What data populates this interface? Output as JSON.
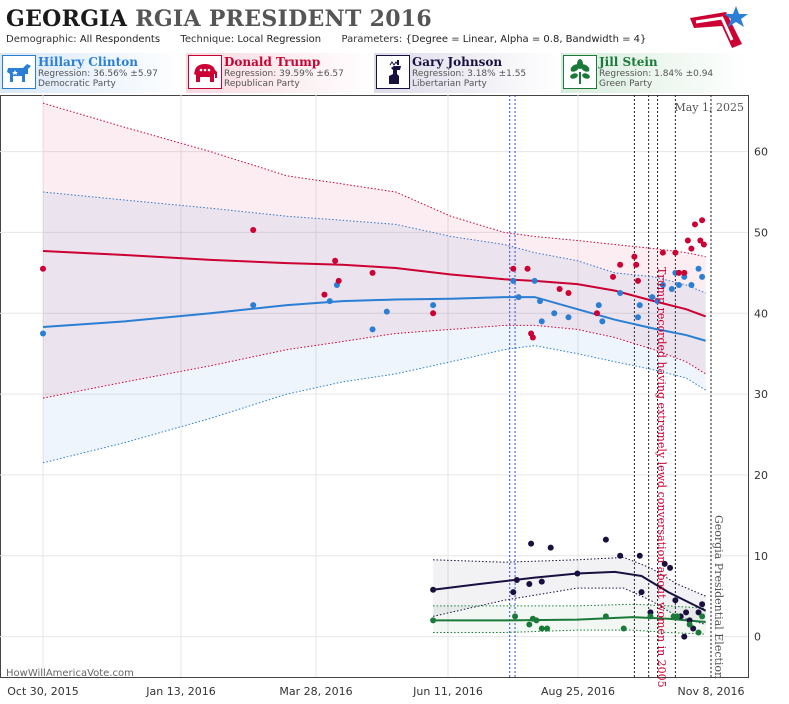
{
  "header": {
    "state": "GEORGIA",
    "subtitle": "RGIA PRESIDENT 2016",
    "demographic_label": "Demographic:",
    "demographic_value": "All Respondents",
    "technique_label": "Technique:",
    "technique_value": "Local Regression",
    "parameters_label": "Parameters:",
    "parameters_value": "{Degree = Linear, Alpha = 0.8, Bandwidth = 4}"
  },
  "candidates": [
    {
      "name": "Hillary Clinton",
      "regression": "Regression: 36.56% ±5.97",
      "party": "Democratic Party",
      "color": "#2a7fd4",
      "icon": "donkey-icon"
    },
    {
      "name": "Donald Trump",
      "regression": "Regression: 39.59% ±6.57",
      "party": "Republican Party",
      "color": "#cc0033",
      "icon": "elephant-icon"
    },
    {
      "name": "Gary Johnson",
      "regression": "Regression: 3.18% ±1.55",
      "party": "Libertarian Party",
      "color": "#1a1040",
      "icon": "liberty-icon"
    },
    {
      "name": "Jill Stein",
      "regression": "Regression: 1.84% ±0.94",
      "party": "Green Party",
      "color": "#1a7a3a",
      "icon": "leaf-icon"
    }
  ],
  "watermark": "HowWillAmericaVote.com",
  "chart_data": {
    "type": "scatter",
    "date_label": "May 1, 2025",
    "x_ticks": [
      "Oct 30, 2015",
      "Jan 13, 2016",
      "Mar 28, 2016",
      "Jun 11, 2016",
      "Aug 25, 2016",
      "Nov 8, 2016"
    ],
    "x_range": [
      "2015-10-30",
      "2016-11-08"
    ],
    "y_ticks": [
      0,
      10,
      20,
      30,
      40,
      50,
      60
    ],
    "ylim": [
      -5,
      67
    ],
    "grid": true,
    "annotations": [
      {
        "date": "2016-10-07",
        "text": "Trump recorded having extremely lewd conversation about women in 2005",
        "color": "#cc0033"
      },
      {
        "date": "2016-11-08",
        "text": "Georgia Presidential Election",
        "color": "#555555"
      }
    ],
    "event_lines_blue": [
      "2016-07-18",
      "2016-07-21"
    ],
    "event_lines_black": [
      "2016-09-26",
      "2016-10-04",
      "2016-10-09",
      "2016-10-19"
    ],
    "series": [
      {
        "name": "Hillary Clinton",
        "color": "#2a7fd4",
        "trend": [
          [
            "2015-10-30",
            38.3
          ],
          [
            "2015-12-15",
            39.0
          ],
          [
            "2016-02-01",
            40.0
          ],
          [
            "2016-03-15",
            41.0
          ],
          [
            "2016-04-15",
            41.5
          ],
          [
            "2016-05-15",
            41.7
          ],
          [
            "2016-06-15",
            41.8
          ],
          [
            "2016-07-15",
            42.0
          ],
          [
            "2016-08-01",
            42.0
          ],
          [
            "2016-08-25",
            40.5
          ],
          [
            "2016-09-15",
            39.2
          ],
          [
            "2016-10-07",
            38.1
          ],
          [
            "2016-10-25",
            37.3
          ],
          [
            "2016-11-05",
            36.6
          ]
        ],
        "upper": [
          [
            "2015-10-30",
            55
          ],
          [
            "2015-12-15",
            54
          ],
          [
            "2016-02-01",
            53
          ],
          [
            "2016-03-15",
            52
          ],
          [
            "2016-04-15",
            51.5
          ],
          [
            "2016-05-15",
            51
          ],
          [
            "2016-06-15",
            49.5
          ],
          [
            "2016-07-15",
            48.5
          ],
          [
            "2016-08-01",
            47.5
          ],
          [
            "2016-08-25",
            46.5
          ],
          [
            "2016-09-15",
            45.0
          ],
          [
            "2016-10-07",
            44.5
          ],
          [
            "2016-10-25",
            43.5
          ],
          [
            "2016-11-05",
            42.5
          ]
        ],
        "lower": [
          [
            "2015-10-30",
            21.5
          ],
          [
            "2015-12-15",
            24
          ],
          [
            "2016-02-01",
            27
          ],
          [
            "2016-03-15",
            30
          ],
          [
            "2016-04-15",
            31.5
          ],
          [
            "2016-05-15",
            32.5
          ],
          [
            "2016-06-15",
            34.0
          ],
          [
            "2016-07-15",
            35.5
          ],
          [
            "2016-08-01",
            36.0
          ],
          [
            "2016-08-25",
            35.0
          ],
          [
            "2016-09-15",
            34.0
          ],
          [
            "2016-10-07",
            33.0
          ],
          [
            "2016-10-25",
            32.0
          ],
          [
            "2016-11-05",
            30.5
          ]
        ],
        "points": [
          [
            "2015-10-30",
            37.5
          ],
          [
            "2016-02-25",
            41
          ],
          [
            "2016-04-08",
            41.5
          ],
          [
            "2016-04-12",
            43.5
          ],
          [
            "2016-05-02",
            38
          ],
          [
            "2016-05-10",
            40.2
          ],
          [
            "2016-06-05",
            41
          ],
          [
            "2016-07-20",
            44
          ],
          [
            "2016-07-23",
            42
          ],
          [
            "2016-08-01",
            44
          ],
          [
            "2016-08-04",
            41.5
          ],
          [
            "2016-08-05",
            39
          ],
          [
            "2016-08-12",
            40
          ],
          [
            "2016-08-20",
            39.5
          ],
          [
            "2016-09-06",
            41
          ],
          [
            "2016-09-08",
            39
          ],
          [
            "2016-09-18",
            42.5
          ],
          [
            "2016-09-28",
            39.5
          ],
          [
            "2016-09-29",
            41
          ],
          [
            "2016-10-06",
            42
          ],
          [
            "2016-10-09",
            41.5
          ],
          [
            "2016-10-12",
            43.5
          ],
          [
            "2016-10-17",
            43
          ],
          [
            "2016-10-19",
            45
          ],
          [
            "2016-10-21",
            43.5
          ],
          [
            "2016-10-24",
            44.5
          ],
          [
            "2016-10-28",
            43.5
          ],
          [
            "2016-11-01",
            45.5
          ],
          [
            "2016-11-03",
            44.5
          ]
        ]
      },
      {
        "name": "Donald Trump",
        "color": "#cc0033",
        "trend": [
          [
            "2015-10-30",
            47.7
          ],
          [
            "2015-12-15",
            47.2
          ],
          [
            "2016-02-01",
            46.6
          ],
          [
            "2016-03-15",
            46.2
          ],
          [
            "2016-04-15",
            46.0
          ],
          [
            "2016-05-15",
            45.6
          ],
          [
            "2016-06-15",
            44.8
          ],
          [
            "2016-07-15",
            44.2
          ],
          [
            "2016-08-01",
            44.0
          ],
          [
            "2016-08-25",
            43.6
          ],
          [
            "2016-09-15",
            42.8
          ],
          [
            "2016-10-07",
            41.5
          ],
          [
            "2016-10-25",
            40.5
          ],
          [
            "2016-11-05",
            39.6
          ]
        ],
        "upper": [
          [
            "2015-10-30",
            66
          ],
          [
            "2015-12-15",
            63
          ],
          [
            "2016-02-01",
            60
          ],
          [
            "2016-03-15",
            57
          ],
          [
            "2016-04-15",
            56
          ],
          [
            "2016-05-15",
            55
          ],
          [
            "2016-06-15",
            52
          ],
          [
            "2016-07-15",
            50
          ],
          [
            "2016-08-01",
            49.5
          ],
          [
            "2016-08-25",
            49
          ],
          [
            "2016-09-15",
            48.5
          ],
          [
            "2016-10-07",
            48
          ],
          [
            "2016-10-25",
            47.5
          ],
          [
            "2016-11-05",
            47
          ]
        ],
        "lower": [
          [
            "2015-10-30",
            29.5
          ],
          [
            "2015-12-15",
            31.5
          ],
          [
            "2016-02-01",
            33.5
          ],
          [
            "2016-03-15",
            35.5
          ],
          [
            "2016-04-15",
            36.5
          ],
          [
            "2016-05-15",
            37.5
          ],
          [
            "2016-06-15",
            38.0
          ],
          [
            "2016-07-15",
            38.5
          ],
          [
            "2016-08-01",
            38.5
          ],
          [
            "2016-08-25",
            38.0
          ],
          [
            "2016-09-15",
            37.0
          ],
          [
            "2016-10-07",
            35.5
          ],
          [
            "2016-10-25",
            34.0
          ],
          [
            "2016-11-05",
            32.5
          ]
        ],
        "points": [
          [
            "2015-10-30",
            45.5
          ],
          [
            "2016-02-25",
            50.3
          ],
          [
            "2016-04-05",
            42.3
          ],
          [
            "2016-04-11",
            46.5
          ],
          [
            "2016-04-13",
            44
          ],
          [
            "2016-05-02",
            45
          ],
          [
            "2016-06-05",
            40
          ],
          [
            "2016-07-20",
            45.5
          ],
          [
            "2016-07-28",
            45.5
          ],
          [
            "2016-07-30",
            37.5
          ],
          [
            "2016-07-31",
            37
          ],
          [
            "2016-08-15",
            43
          ],
          [
            "2016-08-20",
            42.5
          ],
          [
            "2016-09-05",
            40
          ],
          [
            "2016-09-14",
            44.5
          ],
          [
            "2016-09-18",
            46
          ],
          [
            "2016-09-26",
            47
          ],
          [
            "2016-09-27",
            46
          ],
          [
            "2016-09-28",
            44
          ],
          [
            "2016-10-12",
            47.5
          ],
          [
            "2016-10-19",
            47.5
          ],
          [
            "2016-10-21",
            45
          ],
          [
            "2016-10-24",
            45
          ],
          [
            "2016-10-26",
            49
          ],
          [
            "2016-10-28",
            48
          ],
          [
            "2016-10-30",
            51
          ],
          [
            "2016-11-02",
            49
          ],
          [
            "2016-11-03",
            51.5
          ],
          [
            "2016-11-04",
            48.5
          ]
        ]
      },
      {
        "name": "Gary Johnson",
        "color": "#1a1040",
        "trend": [
          [
            "2016-06-05",
            5.8
          ],
          [
            "2016-07-01",
            6.5
          ],
          [
            "2016-08-01",
            7.3
          ],
          [
            "2016-08-25",
            7.8
          ],
          [
            "2016-09-15",
            8.0
          ],
          [
            "2016-09-30",
            7.5
          ],
          [
            "2016-10-15",
            5.5
          ],
          [
            "2016-11-05",
            3.2
          ]
        ],
        "upper": [
          [
            "2016-06-05",
            9.5
          ],
          [
            "2016-07-15",
            9.2
          ],
          [
            "2016-08-25",
            9.5
          ],
          [
            "2016-09-20",
            9.8
          ],
          [
            "2016-10-05",
            8.5
          ],
          [
            "2016-10-20",
            6.5
          ],
          [
            "2016-11-05",
            5.0
          ]
        ],
        "lower": [
          [
            "2016-06-05",
            2.5
          ],
          [
            "2016-07-15",
            4.5
          ],
          [
            "2016-08-25",
            6.0
          ],
          [
            "2016-09-20",
            6.0
          ],
          [
            "2016-10-05",
            4.5
          ],
          [
            "2016-10-20",
            2.5
          ],
          [
            "2016-11-05",
            1.5
          ]
        ],
        "points": [
          [
            "2016-06-05",
            5.8
          ],
          [
            "2016-07-20",
            5.5
          ],
          [
            "2016-07-22",
            7
          ],
          [
            "2016-07-29",
            6.5
          ],
          [
            "2016-07-30",
            11.5
          ],
          [
            "2016-08-05",
            6.8
          ],
          [
            "2016-08-10",
            11
          ],
          [
            "2016-08-25",
            7.8
          ],
          [
            "2016-09-10",
            12
          ],
          [
            "2016-09-18",
            10
          ],
          [
            "2016-09-29",
            10
          ],
          [
            "2016-09-30",
            5.5
          ],
          [
            "2016-10-05",
            3
          ],
          [
            "2016-10-13",
            9
          ],
          [
            "2016-10-16",
            8.5
          ],
          [
            "2016-10-19",
            4.5
          ],
          [
            "2016-10-22",
            2.5
          ],
          [
            "2016-10-24",
            0
          ],
          [
            "2016-10-25",
            3
          ],
          [
            "2016-10-27",
            2
          ],
          [
            "2016-10-29",
            1
          ],
          [
            "2016-11-01",
            3
          ],
          [
            "2016-11-03",
            4
          ]
        ]
      },
      {
        "name": "Jill Stein",
        "color": "#1a7a3a",
        "trend": [
          [
            "2016-06-05",
            2.0
          ],
          [
            "2016-07-15",
            2.0
          ],
          [
            "2016-08-25",
            2.1
          ],
          [
            "2016-09-25",
            2.4
          ],
          [
            "2016-10-15",
            2.2
          ],
          [
            "2016-11-05",
            1.8
          ]
        ],
        "upper": [
          [
            "2016-06-05",
            3.8
          ],
          [
            "2016-07-15",
            3.8
          ],
          [
            "2016-08-25",
            3.8
          ],
          [
            "2016-09-25",
            4.0
          ],
          [
            "2016-10-15",
            3.8
          ],
          [
            "2016-11-05",
            3.5
          ]
        ],
        "lower": [
          [
            "2016-06-05",
            0.5
          ],
          [
            "2016-07-15",
            0.5
          ],
          [
            "2016-08-25",
            0.8
          ],
          [
            "2016-09-25",
            0.8
          ],
          [
            "2016-10-15",
            0.5
          ],
          [
            "2016-11-05",
            0.3
          ]
        ],
        "points": [
          [
            "2016-06-05",
            2
          ],
          [
            "2016-07-21",
            2.5
          ],
          [
            "2016-07-29",
            1.5
          ],
          [
            "2016-07-31",
            2.2
          ],
          [
            "2016-08-02",
            2
          ],
          [
            "2016-08-05",
            1
          ],
          [
            "2016-08-08",
            1
          ],
          [
            "2016-09-10",
            2.5
          ],
          [
            "2016-09-20",
            1
          ],
          [
            "2016-10-05",
            2.5
          ],
          [
            "2016-10-18",
            2.5
          ],
          [
            "2016-10-20",
            2.5
          ],
          [
            "2016-10-27",
            1.5
          ],
          [
            "2016-11-01",
            0.5
          ],
          [
            "2016-11-03",
            2.5
          ]
        ]
      }
    ]
  }
}
